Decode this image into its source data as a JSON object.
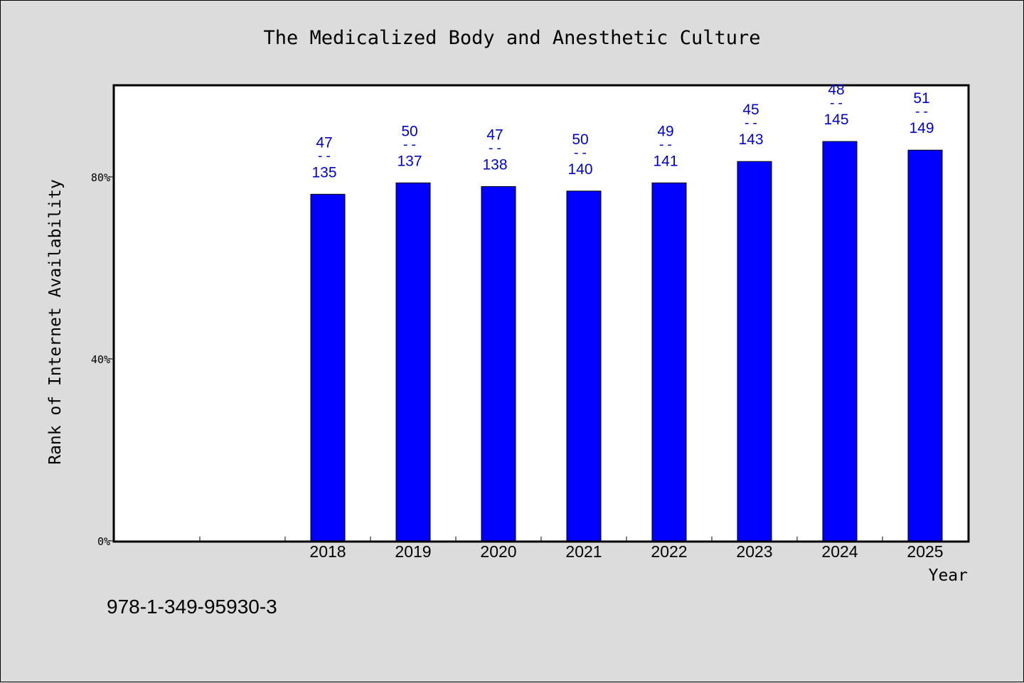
{
  "chart_data": {
    "type": "bar",
    "title": "The Medicalized Body and Anesthetic Culture",
    "xlabel": "Year",
    "ylabel": "Rank of Internet Availability",
    "ylim": [
      0,
      100
    ],
    "yticks": [
      {
        "value": 0,
        "label": "0%"
      },
      {
        "value": 40,
        "label": "40%"
      },
      {
        "value": 80,
        "label": "80%"
      }
    ],
    "categories": [
      "",
      "",
      "2018",
      "2019",
      "2020",
      "2021",
      "2022",
      "2023",
      "2024",
      "2025"
    ],
    "values": [
      null,
      null,
      76.2,
      78.7,
      77.9,
      76.9,
      78.7,
      83.4,
      87.8,
      85.9
    ],
    "data_labels": [
      null,
      null,
      {
        "top": "47",
        "mid": "--",
        "bottom": "135"
      },
      {
        "top": "50",
        "mid": "--",
        "bottom": "137"
      },
      {
        "top": "47",
        "mid": "--",
        "bottom": "138"
      },
      {
        "top": "50",
        "mid": "--",
        "bottom": "140"
      },
      {
        "top": "49",
        "mid": "--",
        "bottom": "141"
      },
      {
        "top": "45",
        "mid": "--",
        "bottom": "143"
      },
      {
        "top": "48",
        "mid": "--",
        "bottom": "145"
      },
      {
        "top": "51",
        "mid": "--",
        "bottom": "149"
      }
    ],
    "bar_color": "#0000ff",
    "label_color": "#0000cc",
    "plot_background": "#ffffff",
    "page_background": "#dcdcdc",
    "grid": false,
    "legend": "none"
  },
  "footer": {
    "isbn": "978-1-349-95930-3"
  }
}
